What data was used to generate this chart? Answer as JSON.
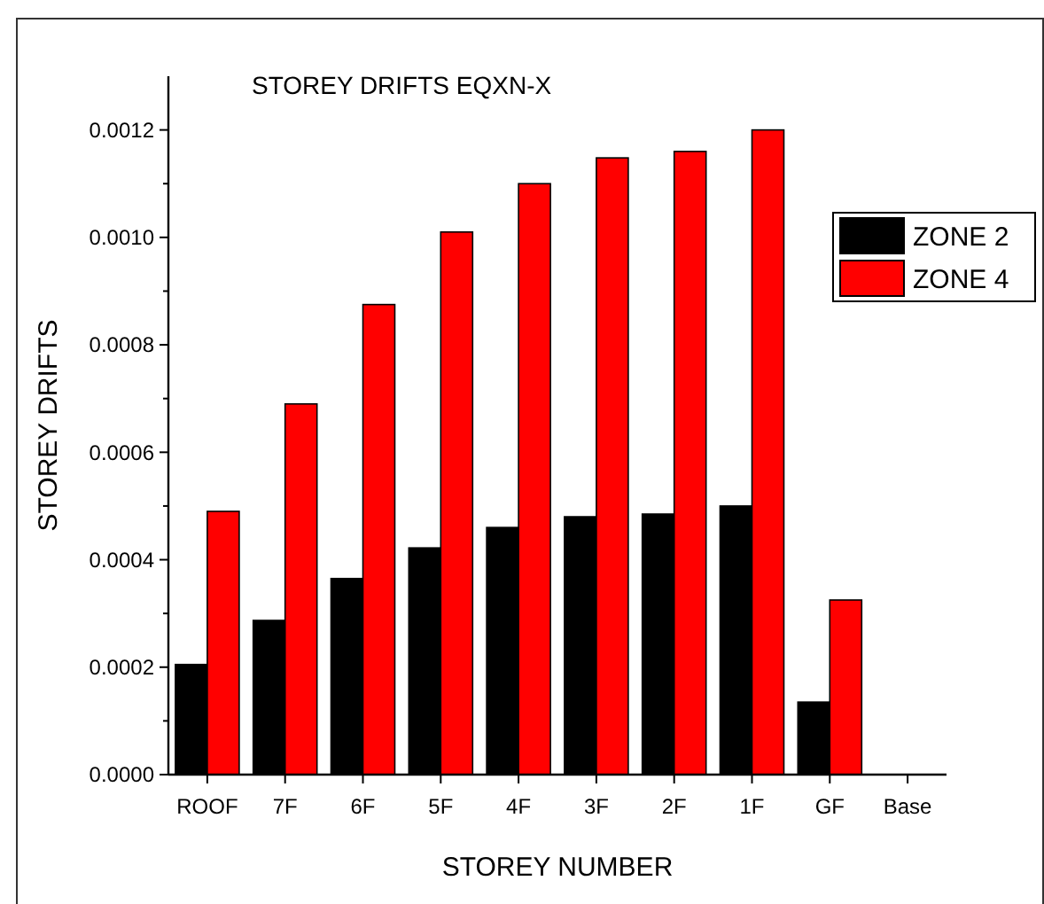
{
  "chart_data": {
    "type": "bar",
    "title": "STOREY DRIFTS EQXN-X",
    "xlabel": "STOREY NUMBER",
    "ylabel": "STOREY DRIFTS",
    "categories": [
      "ROOF",
      "7F",
      "6F",
      "5F",
      "4F",
      "3F",
      "2F",
      "1F",
      "GF",
      "Base"
    ],
    "series": [
      {
        "name": "ZONE 2",
        "color": "#000000",
        "values": [
          0.000205,
          0.000287,
          0.000365,
          0.000422,
          0.00046,
          0.00048,
          0.000485,
          0.0005,
          0.000135,
          0
        ]
      },
      {
        "name": "ZONE 4",
        "color": "#ff0000",
        "values": [
          0.00049,
          0.00069,
          0.000875,
          0.00101,
          0.0011,
          0.001148,
          0.00116,
          0.0012,
          0.000325,
          0
        ]
      }
    ],
    "ylim": [
      0,
      0.0013
    ],
    "yticks": [
      {
        "value": 0,
        "label": "0.0000"
      },
      {
        "value": 0.0001,
        "label": null
      },
      {
        "value": 0.0002,
        "label": "0.0002"
      },
      {
        "value": 0.0003,
        "label": null
      },
      {
        "value": 0.0004,
        "label": "0.0004"
      },
      {
        "value": 0.0005,
        "label": null
      },
      {
        "value": 0.0006,
        "label": "0.0006"
      },
      {
        "value": 0.0007,
        "label": null
      },
      {
        "value": 0.0008,
        "label": "0.0008"
      },
      {
        "value": 0.0009,
        "label": null
      },
      {
        "value": 0.001,
        "label": "0.0010"
      },
      {
        "value": 0.0011,
        "label": null
      },
      {
        "value": 0.0012,
        "label": "0.0012"
      }
    ],
    "grid": false,
    "legend": "right"
  }
}
